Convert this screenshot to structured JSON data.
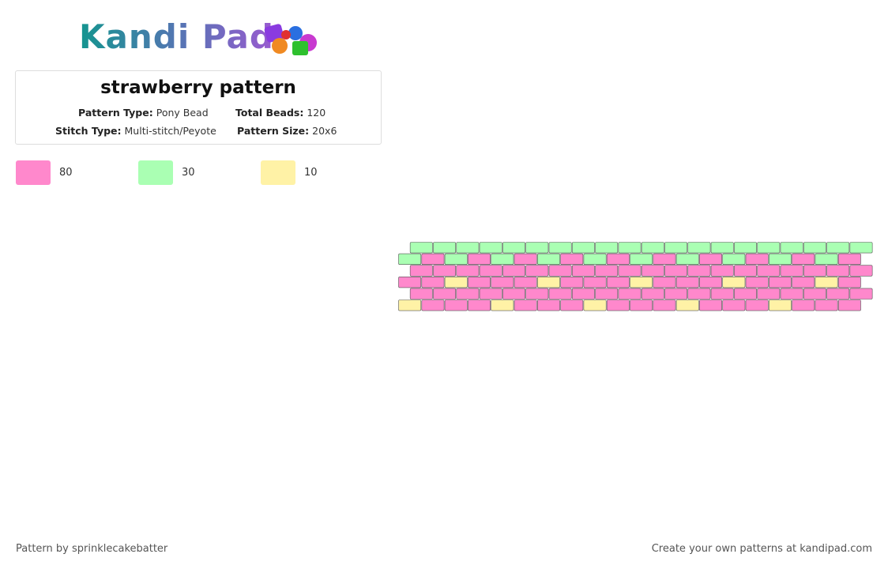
{
  "header": {
    "logo": "Kandi Pad",
    "title": "strawberry pattern",
    "fields": [
      {
        "label": "Pattern Type:",
        "value": "Pony Bead"
      },
      {
        "label": "Total Beads:",
        "value": "120"
      },
      {
        "label": "Stitch Type:",
        "value": "Multi-stitch/Peyote"
      },
      {
        "label": "Pattern Size:",
        "value": "20x6"
      }
    ]
  },
  "legend": [
    {
      "color": "#ff88cc",
      "count": 80
    },
    {
      "color": "#aaffb3",
      "count": 30
    },
    {
      "color": "#fff2a6",
      "count": 10
    }
  ],
  "pattern": {
    "rows": [
      [
        1,
        1,
        1,
        1,
        1,
        1,
        1,
        1,
        1,
        1,
        1,
        1,
        1,
        1,
        1,
        1,
        1,
        1,
        1,
        1
      ],
      [
        1,
        0,
        1,
        0,
        1,
        0,
        1,
        0,
        1,
        0,
        1,
        0,
        1,
        0,
        1,
        0,
        1,
        0,
        1,
        0
      ],
      [
        0,
        0,
        0,
        0,
        0,
        0,
        0,
        0,
        0,
        0,
        0,
        0,
        0,
        0,
        0,
        0,
        0,
        0,
        0,
        0
      ],
      [
        0,
        0,
        2,
        0,
        0,
        0,
        2,
        0,
        0,
        0,
        2,
        0,
        0,
        0,
        2,
        0,
        0,
        0,
        2,
        0
      ],
      [
        0,
        0,
        0,
        0,
        0,
        0,
        0,
        0,
        0,
        0,
        0,
        0,
        0,
        0,
        0,
        0,
        0,
        0,
        0,
        0
      ],
      [
        2,
        0,
        0,
        0,
        2,
        0,
        0,
        0,
        2,
        0,
        0,
        0,
        2,
        0,
        0,
        0,
        2,
        0,
        0,
        0
      ]
    ]
  },
  "footer": {
    "left": "Pattern by sprinklecakebatter",
    "right": "Create your own patterns at kandipad.com"
  }
}
